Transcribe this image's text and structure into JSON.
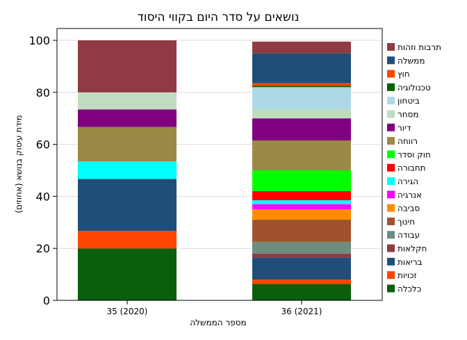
{
  "chart_data": {
    "type": "bar",
    "stacked": true,
    "title": "נושאים על סדר היום בקווי היסוד",
    "xlabel": "מספר הממשלה",
    "ylabel": "מידת עיסוק בנושא (אחוזים)",
    "ylim": [
      0,
      100
    ],
    "yticks": [
      "0",
      "20",
      "40",
      "60",
      "80",
      "100"
    ],
    "grid": true,
    "legend_position": "right",
    "categories": [
      "35 (2020)",
      "36 (2021)"
    ],
    "series": [
      {
        "name": "כלכלה",
        "color": "#0b5e0b",
        "values": [
          20.0,
          6.3
        ]
      },
      {
        "name": "זכויות",
        "color": "#ff4500",
        "values": [
          6.7,
          1.7
        ]
      },
      {
        "name": "בריאות",
        "color": "#1f4e79",
        "values": [
          20.0,
          8.5
        ]
      },
      {
        "name": "חקלאות",
        "color": "#903a44",
        "values": [
          0,
          1.5
        ]
      },
      {
        "name": "עבודה",
        "color": "#6b8e80",
        "values": [
          0,
          4.5
        ]
      },
      {
        "name": "חינוך",
        "color": "#a0522d",
        "values": [
          0,
          8.5
        ]
      },
      {
        "name": "סביבה",
        "color": "#ff8c00",
        "values": [
          0,
          4.0
        ]
      },
      {
        "name": "אנרגיה",
        "color": "#ff00ff",
        "values": [
          0,
          2.0
        ]
      },
      {
        "name": "הגירה",
        "color": "#00ffff",
        "values": [
          6.7,
          1.5
        ]
      },
      {
        "name": "תחבורה",
        "color": "#ff0000",
        "values": [
          0,
          3.5
        ]
      },
      {
        "name": "חוק וסדר",
        "color": "#00ff00",
        "values": [
          0,
          8.0
        ]
      },
      {
        "name": "רווחה",
        "color": "#9a8a45",
        "values": [
          13.3,
          11.5
        ]
      },
      {
        "name": "דיור",
        "color": "#800080",
        "values": [
          6.7,
          8.5
        ]
      },
      {
        "name": "מסחר",
        "color": "#c0dcc0",
        "values": [
          6.6,
          3.5
        ]
      },
      {
        "name": "ביטחון",
        "color": "#add8e6",
        "values": [
          0,
          8.5
        ]
      },
      {
        "name": "טכנולוגיה",
        "color": "#006400",
        "values": [
          0,
          0.5
        ]
      },
      {
        "name": "חוץ",
        "color": "#ff4500",
        "values": [
          0,
          1.0
        ]
      },
      {
        "name": "ממשלה",
        "color": "#1f4e79",
        "values": [
          0,
          11.5
        ]
      },
      {
        "name": "תרבות וזהות",
        "color": "#903a44",
        "values": [
          20.0,
          4.5
        ]
      }
    ]
  }
}
